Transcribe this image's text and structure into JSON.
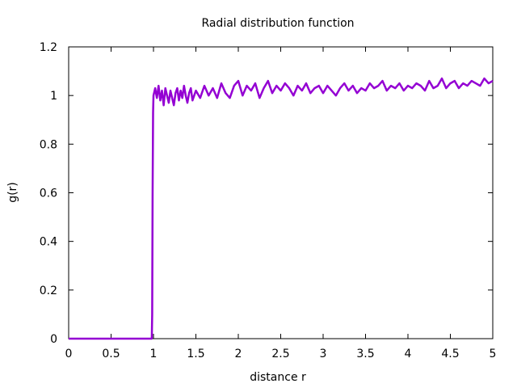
{
  "chart_data": {
    "type": "line",
    "title": "Radial distribution function",
    "xlabel": "distance r",
    "ylabel": "g(r)",
    "xlim": [
      0,
      5
    ],
    "ylim": [
      0,
      1.2
    ],
    "xticks": [
      "0",
      "0.5",
      "1",
      "1.5",
      "2",
      "2.5",
      "3",
      "3.5",
      "4",
      "4.5",
      "5"
    ],
    "yticks": [
      "0",
      "0.2",
      "0.4",
      "0.6",
      "0.8",
      "1",
      "1.2"
    ],
    "grid": false,
    "legend": "none",
    "series": [
      {
        "color": "#9400d3",
        "x": [
          0,
          0.25,
          0.5,
          0.75,
          0.98,
          0.985,
          0.99,
          0.995,
          1.0,
          1.02,
          1.04,
          1.06,
          1.08,
          1.1,
          1.12,
          1.14,
          1.16,
          1.18,
          1.2,
          1.22,
          1.24,
          1.26,
          1.28,
          1.3,
          1.32,
          1.34,
          1.36,
          1.38,
          1.4,
          1.42,
          1.44,
          1.46,
          1.48,
          1.5,
          1.55,
          1.6,
          1.65,
          1.7,
          1.75,
          1.8,
          1.85,
          1.9,
          1.95,
          2.0,
          2.05,
          2.1,
          2.15,
          2.2,
          2.25,
          2.3,
          2.35,
          2.4,
          2.45,
          2.5,
          2.55,
          2.6,
          2.65,
          2.7,
          2.75,
          2.8,
          2.85,
          2.9,
          2.95,
          3.0,
          3.05,
          3.1,
          3.15,
          3.2,
          3.25,
          3.3,
          3.35,
          3.4,
          3.45,
          3.5,
          3.55,
          3.6,
          3.65,
          3.7,
          3.75,
          3.8,
          3.85,
          3.9,
          3.95,
          4.0,
          4.05,
          4.1,
          4.15,
          4.2,
          4.25,
          4.3,
          4.35,
          4.4,
          4.45,
          4.5,
          4.55,
          4.6,
          4.65,
          4.7,
          4.75,
          4.8,
          4.85,
          4.9,
          4.95,
          5.0
        ],
        "y": [
          0,
          0,
          0,
          0,
          0,
          0.1,
          0.59,
          0.93,
          1.0,
          1.03,
          0.99,
          1.04,
          0.98,
          1.02,
          0.96,
          1.03,
          1.0,
          0.97,
          1.02,
          0.99,
          0.96,
          1.01,
          1.03,
          0.98,
          1.02,
          0.99,
          1.04,
          1.0,
          0.97,
          1.01,
          1.03,
          0.98,
          1.0,
          1.02,
          0.99,
          1.04,
          1.0,
          1.03,
          0.99,
          1.05,
          1.01,
          0.99,
          1.04,
          1.06,
          1.0,
          1.04,
          1.02,
          1.05,
          0.99,
          1.03,
          1.06,
          1.01,
          1.04,
          1.02,
          1.05,
          1.03,
          1.0,
          1.04,
          1.02,
          1.05,
          1.01,
          1.03,
          1.04,
          1.01,
          1.04,
          1.02,
          1.0,
          1.03,
          1.05,
          1.02,
          1.04,
          1.01,
          1.03,
          1.02,
          1.05,
          1.03,
          1.04,
          1.06,
          1.02,
          1.04,
          1.03,
          1.05,
          1.02,
          1.04,
          1.03,
          1.05,
          1.04,
          1.02,
          1.06,
          1.03,
          1.04,
          1.07,
          1.03,
          1.05,
          1.06,
          1.03,
          1.05,
          1.04,
          1.06,
          1.05,
          1.04,
          1.07,
          1.05,
          1.06
        ]
      }
    ]
  }
}
